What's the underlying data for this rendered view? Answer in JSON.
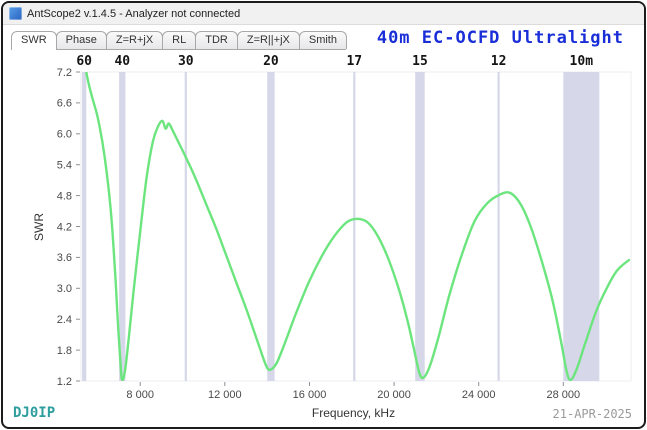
{
  "window": {
    "title": "AntScope2 v.1.4.5 - Analyzer not connected"
  },
  "tabs": [
    {
      "label": "SWR",
      "active": true
    },
    {
      "label": "Phase",
      "active": false
    },
    {
      "label": "Z=R+jX",
      "active": false
    },
    {
      "label": "RL",
      "active": false
    },
    {
      "label": "TDR",
      "active": false
    },
    {
      "label": "Z=R||+jX",
      "active": false
    },
    {
      "label": "Smith",
      "active": false
    }
  ],
  "footer": {
    "callsign": "DJ0IP",
    "date": "21-APR-2025"
  },
  "colors": {
    "title_blue": "#1a2ed8",
    "callsign_teal": "#2e9e9e",
    "date_gray": "#9a9a9a",
    "curve_green": "#6ce57e",
    "band_fill": "#d6d7e8"
  },
  "chart_data": {
    "type": "line",
    "title": "40m EC-OCFD Ultralight",
    "xlabel": "Frequency, kHz",
    "ylabel": "SWR",
    "xlim": [
      5200,
      31200
    ],
    "ylim": [
      1.2,
      7.2
    ],
    "grid": false,
    "legend": false,
    "x_ticks": [
      {
        "value": 8000,
        "label": "8 000"
      },
      {
        "value": 12000,
        "label": "12 000"
      },
      {
        "value": 16000,
        "label": "16 000"
      },
      {
        "value": 20000,
        "label": "20 000"
      },
      {
        "value": 24000,
        "label": "24 000"
      },
      {
        "value": 28000,
        "label": "28 000"
      }
    ],
    "y_ticks": [
      {
        "value": 7.2,
        "label": "7.2"
      },
      {
        "value": 6.6,
        "label": "6.6"
      },
      {
        "value": 6.0,
        "label": "6.0"
      },
      {
        "value": 5.4,
        "label": "5.4"
      },
      {
        "value": 4.8,
        "label": "4.8"
      },
      {
        "value": 4.2,
        "label": "4.2"
      },
      {
        "value": 3.6,
        "label": "3.6"
      },
      {
        "value": 3.0,
        "label": "3.0"
      },
      {
        "value": 2.4,
        "label": "2.4"
      },
      {
        "value": 1.8,
        "label": "1.8"
      },
      {
        "value": 1.2,
        "label": "1.2"
      }
    ],
    "bands": [
      {
        "label": "60",
        "from": 5250,
        "to": 5450
      },
      {
        "label": "40",
        "from": 7000,
        "to": 7300
      },
      {
        "label": "30",
        "from": 10100,
        "to": 10150
      },
      {
        "label": "20",
        "from": 14000,
        "to": 14350
      },
      {
        "label": "17",
        "from": 18068,
        "to": 18168
      },
      {
        "label": "15",
        "from": 21000,
        "to": 21450
      },
      {
        "label": "12",
        "from": 24890,
        "to": 24990
      },
      {
        "label": "10m",
        "from": 28000,
        "to": 29700
      }
    ],
    "series": [
      {
        "name": "SWR",
        "color": "#6ce57e",
        "points": [
          [
            5200,
            8.0
          ],
          [
            5450,
            7.2
          ],
          [
            5700,
            6.75
          ],
          [
            6000,
            6.3
          ],
          [
            6300,
            5.6
          ],
          [
            6600,
            4.55
          ],
          [
            6800,
            3.4
          ],
          [
            6950,
            2.3
          ],
          [
            7080,
            1.45
          ],
          [
            7150,
            1.22
          ],
          [
            7280,
            1.4
          ],
          [
            7450,
            2.0
          ],
          [
            7700,
            3.0
          ],
          [
            8000,
            4.1
          ],
          [
            8300,
            5.15
          ],
          [
            8600,
            5.85
          ],
          [
            8850,
            6.15
          ],
          [
            9050,
            6.25
          ],
          [
            9200,
            6.1
          ],
          [
            9350,
            6.2
          ],
          [
            9550,
            6.05
          ],
          [
            9850,
            5.8
          ],
          [
            10150,
            5.55
          ],
          [
            10600,
            5.15
          ],
          [
            11100,
            4.65
          ],
          [
            11600,
            4.15
          ],
          [
            12100,
            3.6
          ],
          [
            12600,
            3.05
          ],
          [
            13100,
            2.5
          ],
          [
            13600,
            1.9
          ],
          [
            13950,
            1.5
          ],
          [
            14150,
            1.42
          ],
          [
            14450,
            1.55
          ],
          [
            14850,
            1.95
          ],
          [
            15350,
            2.5
          ],
          [
            15950,
            3.1
          ],
          [
            16550,
            3.6
          ],
          [
            17150,
            4.0
          ],
          [
            17750,
            4.28
          ],
          [
            18250,
            4.35
          ],
          [
            18750,
            4.28
          ],
          [
            19250,
            4.0
          ],
          [
            19750,
            3.55
          ],
          [
            20250,
            2.95
          ],
          [
            20650,
            2.35
          ],
          [
            20950,
            1.8
          ],
          [
            21200,
            1.35
          ],
          [
            21400,
            1.27
          ],
          [
            21700,
            1.5
          ],
          [
            22100,
            2.05
          ],
          [
            22600,
            2.85
          ],
          [
            23200,
            3.65
          ],
          [
            23800,
            4.3
          ],
          [
            24400,
            4.65
          ],
          [
            25000,
            4.82
          ],
          [
            25500,
            4.85
          ],
          [
            26000,
            4.62
          ],
          [
            26500,
            4.15
          ],
          [
            27000,
            3.5
          ],
          [
            27500,
            2.75
          ],
          [
            27900,
            1.95
          ],
          [
            28150,
            1.4
          ],
          [
            28350,
            1.22
          ],
          [
            28650,
            1.45
          ],
          [
            29050,
            1.95
          ],
          [
            29550,
            2.55
          ],
          [
            30050,
            3.0
          ],
          [
            30550,
            3.35
          ],
          [
            31100,
            3.55
          ]
        ]
      }
    ]
  }
}
